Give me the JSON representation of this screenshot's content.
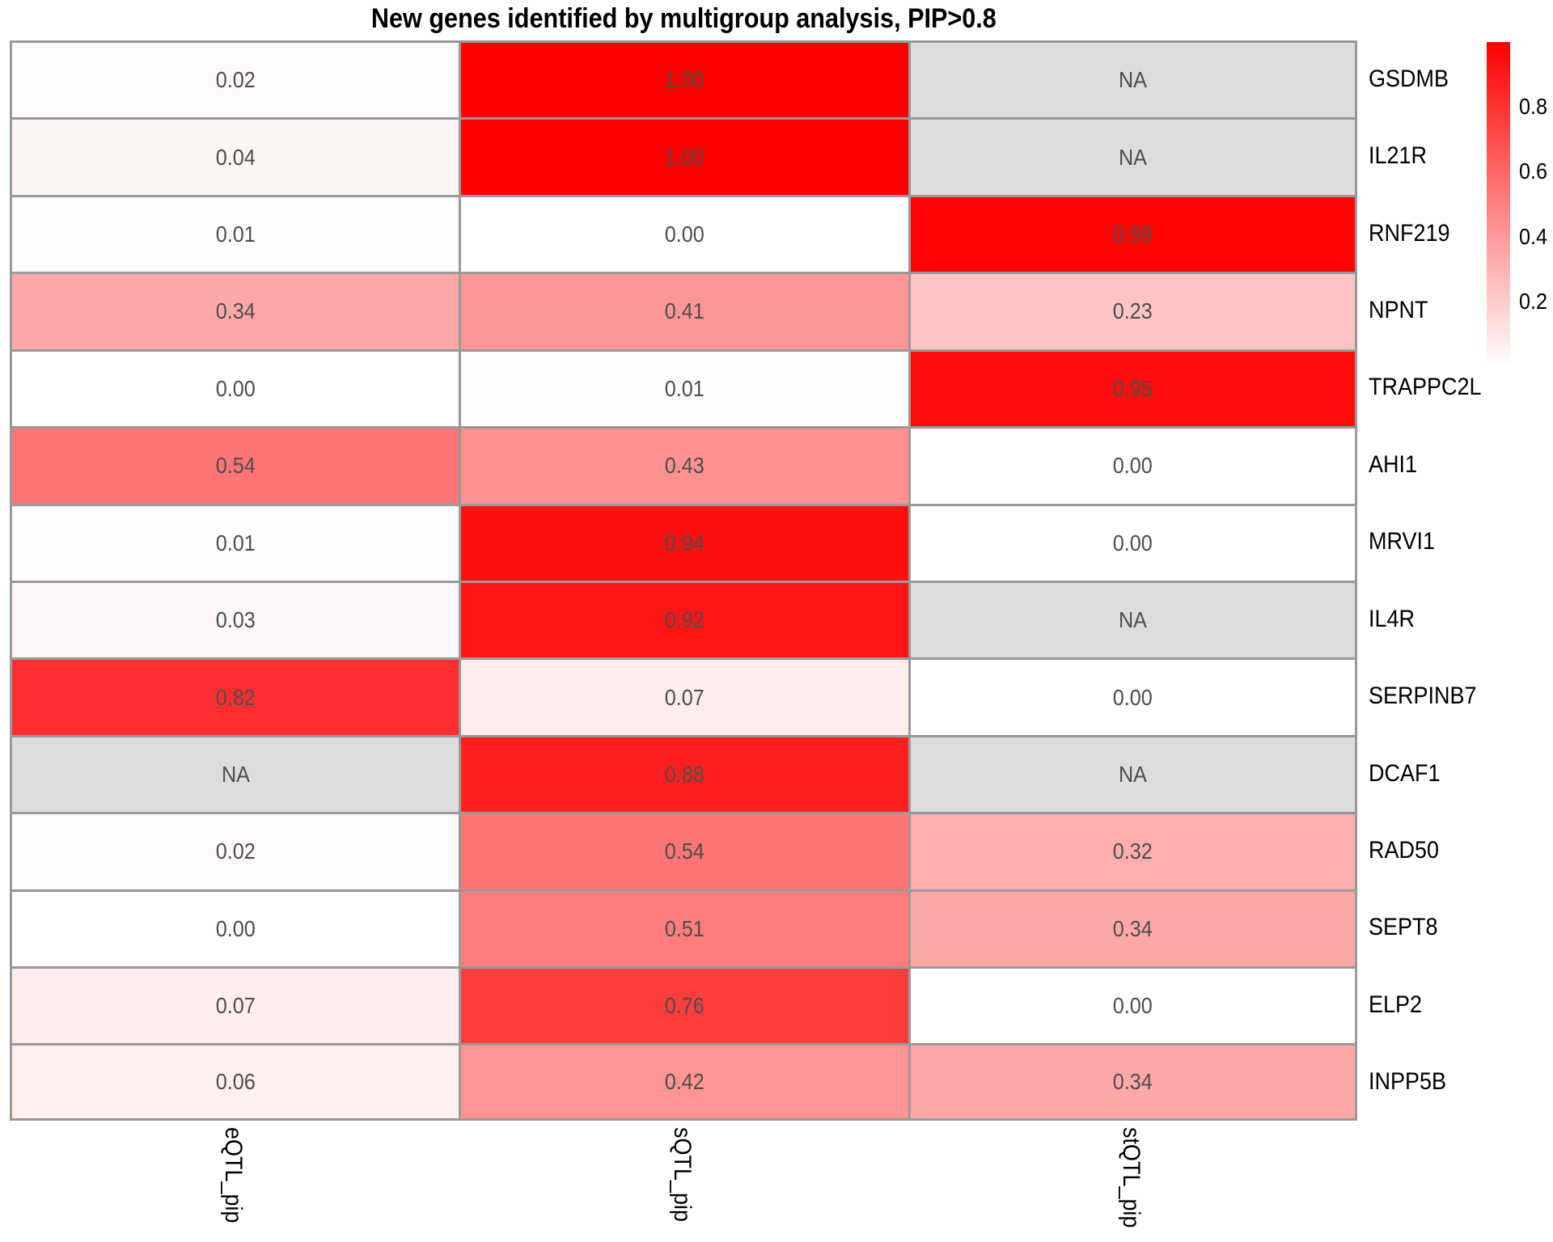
{
  "title": "New genes identified by multigroup analysis, PIP>0.8",
  "chart_data": {
    "type": "heatmap",
    "title": "New genes identified by multigroup analysis, PIP>0.8",
    "columns": [
      "eQTL_pip",
      "sQTL_pip",
      "stQTL_pip"
    ],
    "rows": [
      "GSDMB",
      "IL21R",
      "RNF219",
      "NPNT",
      "TRAPPC2L",
      "AHI1",
      "MRVI1",
      "IL4R",
      "SERPINB7",
      "DCAF1",
      "RAD50",
      "SEPT8",
      "ELP2",
      "INPP5B"
    ],
    "values": [
      [
        0.02,
        1.0,
        null
      ],
      [
        0.04,
        1.0,
        null
      ],
      [
        0.01,
        0.0,
        0.99
      ],
      [
        0.34,
        0.41,
        0.23
      ],
      [
        0.0,
        0.01,
        0.95
      ],
      [
        0.54,
        0.43,
        0.0
      ],
      [
        0.01,
        0.94,
        0.0
      ],
      [
        0.03,
        0.92,
        null
      ],
      [
        0.82,
        0.07,
        0.0
      ],
      [
        null,
        0.88,
        null
      ],
      [
        0.02,
        0.54,
        0.32
      ],
      [
        0.0,
        0.51,
        0.34
      ],
      [
        0.07,
        0.76,
        0.0
      ],
      [
        0.06,
        0.42,
        0.34
      ]
    ],
    "na_label": "NA",
    "value_range": [
      0,
      1
    ],
    "grid_lines": true,
    "legend": {
      "position": "right",
      "breaks": [
        0.8,
        0.6,
        0.4,
        0.2
      ],
      "labels": [
        "0.8",
        "0.6",
        "0.4",
        "0.2"
      ]
    },
    "colors": {
      "low": "#FFFFFF",
      "high": "#FF0000",
      "na_cell": "#DDDDDD",
      "border": "#999999",
      "value_text": "#4D4D4D",
      "label_text": "#000000"
    }
  }
}
